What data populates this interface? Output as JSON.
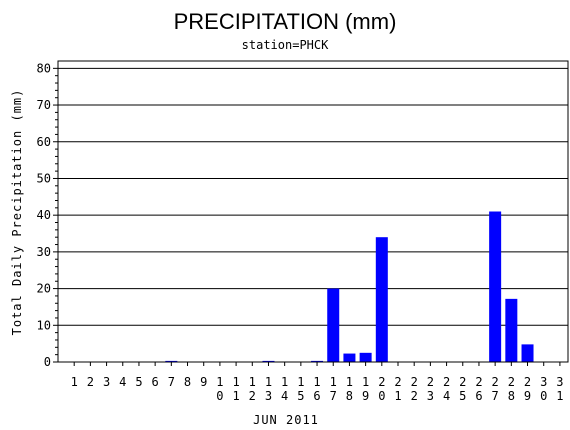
{
  "chart_data": {
    "type": "bar",
    "title": "PRECIPITATION (mm)",
    "subtitle": "station=PHCK",
    "xlabel": "JUN 2011",
    "ylabel": "Total Daily Precipitation (mm)",
    "ylim": [
      0,
      82
    ],
    "yticks": [
      0,
      10,
      20,
      30,
      40,
      50,
      60,
      70,
      80
    ],
    "grid": true,
    "bar_color": "#0000ff",
    "categories": [
      "1",
      "2",
      "3",
      "4",
      "5",
      "6",
      "7",
      "8",
      "9",
      "10",
      "11",
      "12",
      "13",
      "14",
      "15",
      "16",
      "17",
      "18",
      "19",
      "20",
      "21",
      "22",
      "23",
      "24",
      "25",
      "26",
      "27",
      "28",
      "29",
      "30",
      "31"
    ],
    "values": [
      0,
      0,
      0,
      0,
      0,
      0,
      0.3,
      0,
      0,
      0,
      0,
      0,
      0.3,
      0,
      0,
      0.3,
      20,
      2.3,
      2.5,
      34,
      0,
      0,
      0,
      0,
      0,
      0,
      41,
      17.2,
      4.8,
      0,
      0
    ]
  }
}
